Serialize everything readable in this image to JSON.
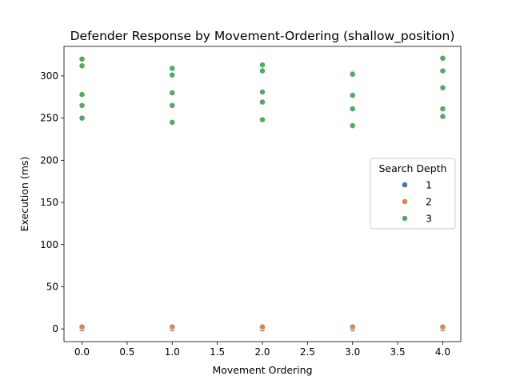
{
  "chart_data": {
    "type": "scatter",
    "title": "Defender Response by Movement-Ordering (shallow_position)",
    "xlabel": "Movement Ordering",
    "ylabel": "Execution (ms)",
    "xlim": [
      -0.2,
      4.2
    ],
    "ylim": [
      -15,
      335
    ],
    "xticks": [
      0.0,
      0.5,
      1.0,
      1.5,
      2.0,
      2.5,
      3.0,
      3.5,
      4.0
    ],
    "xtick_labels": [
      "0.0",
      "0.5",
      "1.0",
      "1.5",
      "2.0",
      "2.5",
      "3.0",
      "3.5",
      "4.0"
    ],
    "yticks": [
      0,
      50,
      100,
      150,
      200,
      250,
      300
    ],
    "ytick_labels": [
      "0",
      "50",
      "100",
      "150",
      "200",
      "250",
      "300"
    ],
    "grid": false,
    "legend": {
      "title": "Search Depth",
      "placement": "center-right"
    },
    "series": [
      {
        "name": "1",
        "color": "#4c72b0",
        "points": [
          [
            0,
            0.1
          ],
          [
            0,
            0.2
          ],
          [
            1,
            0.1
          ],
          [
            1,
            0.2
          ],
          [
            2,
            0.1
          ],
          [
            2,
            0.2
          ],
          [
            3,
            0.1
          ],
          [
            3,
            0.2
          ],
          [
            4,
            0.1
          ],
          [
            4,
            0.2
          ]
        ]
      },
      {
        "name": "2",
        "color": "#dd8452",
        "points": [
          [
            0,
            2
          ],
          [
            0,
            2.5
          ],
          [
            1,
            2
          ],
          [
            1,
            2.5
          ],
          [
            2,
            2
          ],
          [
            2,
            2.5
          ],
          [
            3,
            2
          ],
          [
            3,
            2.5
          ],
          [
            4,
            2
          ],
          [
            4,
            2.5
          ]
        ]
      },
      {
        "name": "3",
        "color": "#55a868",
        "points": [
          [
            0,
            320
          ],
          [
            0,
            312
          ],
          [
            0,
            278
          ],
          [
            0,
            265
          ],
          [
            0,
            250
          ],
          [
            1,
            309
          ],
          [
            1,
            301
          ],
          [
            1,
            280
          ],
          [
            1,
            265
          ],
          [
            1,
            245
          ],
          [
            2,
            313
          ],
          [
            2,
            306
          ],
          [
            2,
            281
          ],
          [
            2,
            269
          ],
          [
            2,
            248
          ],
          [
            3,
            303
          ],
          [
            3,
            302
          ],
          [
            3,
            277
          ],
          [
            3,
            261
          ],
          [
            3,
            241
          ],
          [
            4,
            321
          ],
          [
            4,
            306
          ],
          [
            4,
            286
          ],
          [
            4,
            261
          ],
          [
            4,
            252
          ]
        ]
      }
    ]
  }
}
